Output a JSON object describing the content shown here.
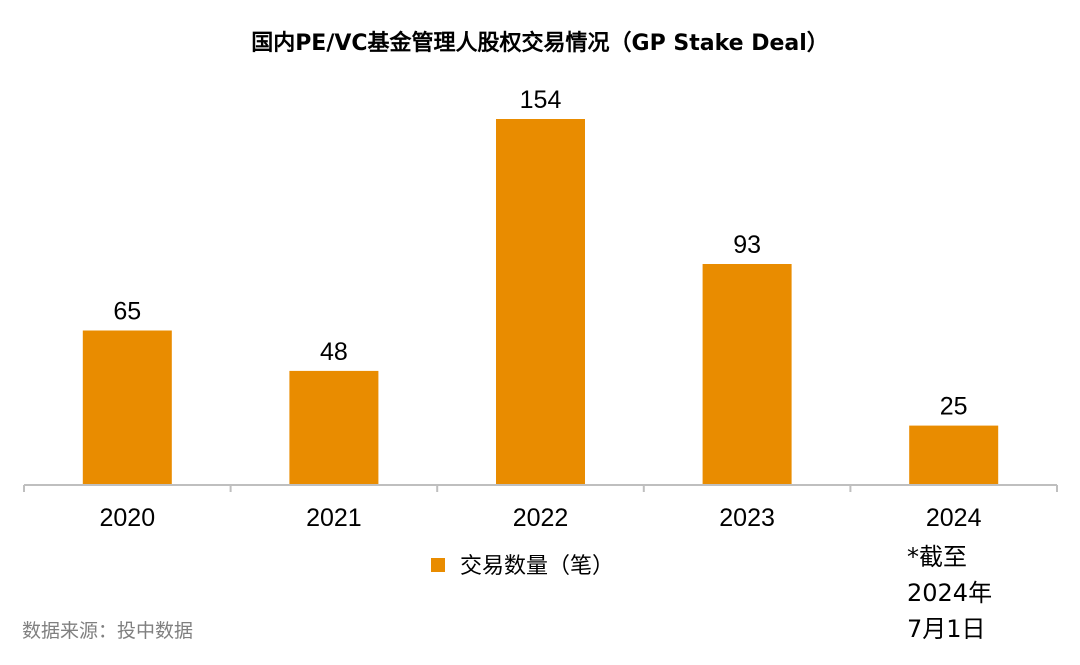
{
  "chart_data": {
    "type": "bar",
    "title": "国内PE/VC基金管理人股权交易情况（GP Stake Deal）",
    "categories": [
      "2020",
      "2021",
      "2022",
      "2023",
      "2024"
    ],
    "series": [
      {
        "name": "交易数量（笔）",
        "values": [
          65,
          48,
          154,
          93,
          25
        ],
        "color": "#E98C00"
      }
    ],
    "data_labels": [
      "65",
      "48",
      "154",
      "93",
      "25"
    ],
    "ylim": [
      0,
      154
    ],
    "grid": false,
    "axis_color": "#BFBFBF",
    "legend_position": "bottom"
  },
  "note": {
    "lines": [
      "*截至",
      "2024年",
      "7月1日"
    ]
  },
  "source": "数据来源：投中数据"
}
